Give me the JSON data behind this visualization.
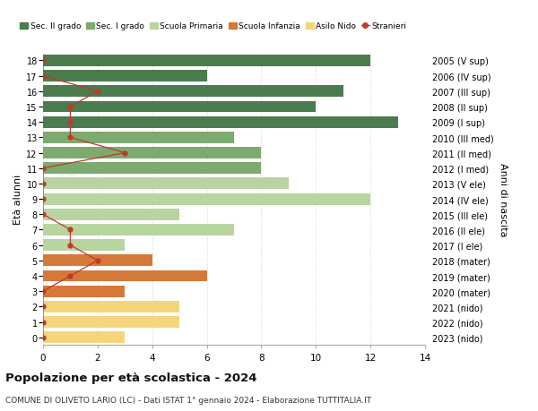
{
  "ages": [
    18,
    17,
    16,
    15,
    14,
    13,
    12,
    11,
    10,
    9,
    8,
    7,
    6,
    5,
    4,
    3,
    2,
    1,
    0
  ],
  "right_labels": [
    "2005 (V sup)",
    "2006 (IV sup)",
    "2007 (III sup)",
    "2008 (II sup)",
    "2009 (I sup)",
    "2010 (III med)",
    "2011 (II med)",
    "2012 (I med)",
    "2013 (V ele)",
    "2014 (IV ele)",
    "2015 (III ele)",
    "2016 (II ele)",
    "2017 (I ele)",
    "2018 (mater)",
    "2019 (mater)",
    "2020 (mater)",
    "2021 (nido)",
    "2022 (nido)",
    "2023 (nido)"
  ],
  "bar_values": [
    12,
    6,
    11,
    10,
    13,
    7,
    8,
    8,
    9,
    12,
    5,
    7,
    3,
    4,
    6,
    3,
    5,
    5,
    3
  ],
  "bar_colors": [
    "#4a7c4e",
    "#4a7c4e",
    "#4a7c4e",
    "#4a7c4e",
    "#4a7c4e",
    "#7daa6e",
    "#7daa6e",
    "#7daa6e",
    "#b8d4a0",
    "#b8d4a0",
    "#b8d4a0",
    "#b8d4a0",
    "#b8d4a0",
    "#d4793a",
    "#d4793a",
    "#d4793a",
    "#f5d57a",
    "#f5d57a",
    "#f5d57a"
  ],
  "stranieri_values": [
    0,
    0,
    2,
    1,
    1,
    1,
    3,
    0,
    0,
    0,
    0,
    1,
    1,
    2,
    1,
    0,
    0,
    0,
    0
  ],
  "legend_labels": [
    "Sec. II grado",
    "Sec. I grado",
    "Scuola Primaria",
    "Scuola Infanzia",
    "Asilo Nido",
    "Stranieri"
  ],
  "legend_colors": [
    "#4a7c4e",
    "#7daa6e",
    "#b8d4a0",
    "#d4793a",
    "#f5d57a",
    "#c0392b"
  ],
  "title": "Popolazione per età scolastica - 2024",
  "subtitle": "COMUNE DI OLIVETO LARIO (LC) - Dati ISTAT 1° gennaio 2024 - Elaborazione TUTTITALIA.IT",
  "ylabel_left": "Età alunni",
  "ylabel_right": "Anni di nascita",
  "xlim": [
    0,
    14
  ],
  "xticks": [
    0,
    2,
    4,
    6,
    8,
    10,
    12,
    14
  ],
  "background_color": "#ffffff",
  "grid_color": "#dddddd"
}
